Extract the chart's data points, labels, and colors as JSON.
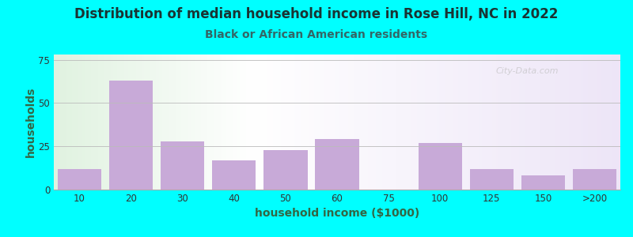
{
  "title": "Distribution of median household income in Rose Hill, NC in 2022",
  "subtitle": "Black or African American residents",
  "xlabel": "household income ($1000)",
  "ylabel": "households",
  "bg_outer": "#00FFFF",
  "bar_color": "#c8aad8",
  "categories": [
    "10",
    "20",
    "30",
    "40",
    "50",
    "60",
    "75",
    "100",
    "125",
    "150",
    ">200"
  ],
  "values": [
    12,
    63,
    28,
    17,
    23,
    29,
    0,
    27,
    12,
    8,
    12
  ],
  "ylim": [
    0,
    78
  ],
  "yticks": [
    0,
    25,
    50,
    75
  ],
  "title_fontsize": 12,
  "subtitle_fontsize": 10,
  "axis_label_fontsize": 10,
  "tick_fontsize": 8.5,
  "title_color": "#1a3333",
  "subtitle_color": "#336666",
  "axis_label_color": "#336644",
  "watermark": "City-Data.com"
}
